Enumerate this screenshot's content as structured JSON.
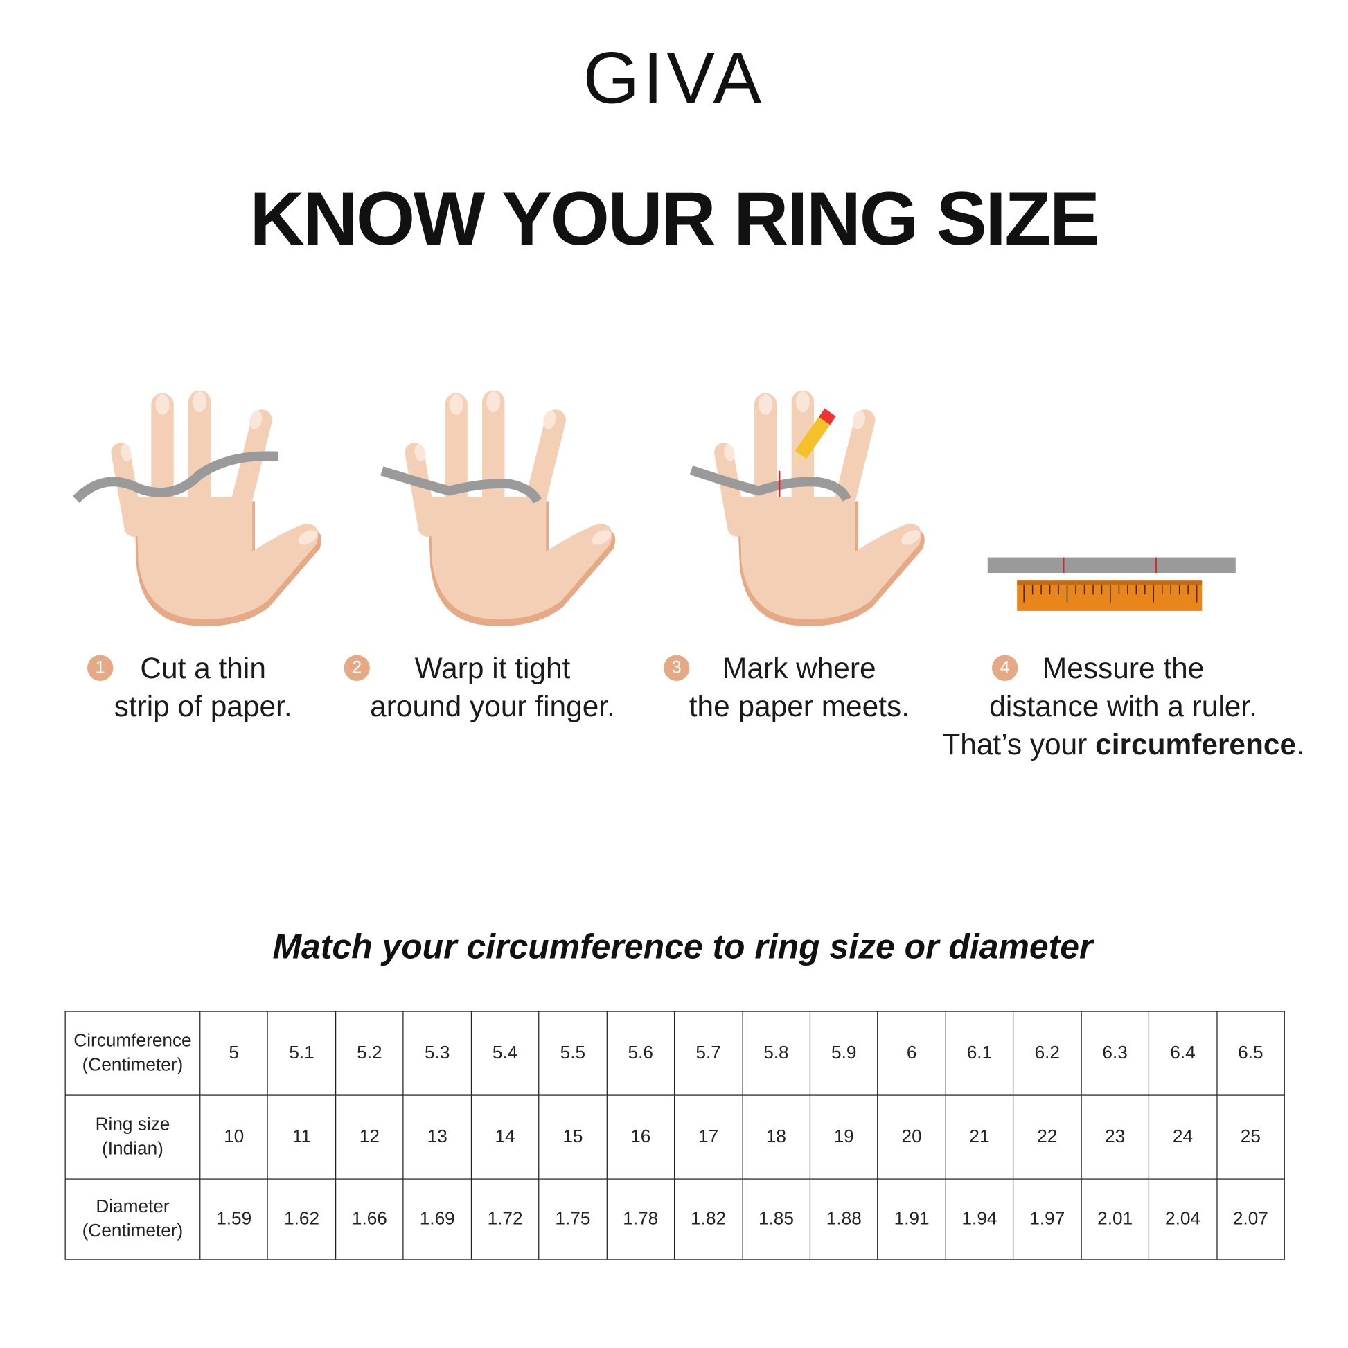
{
  "brand": "GIVA",
  "title": "KNOW YOUR RING SIZE",
  "steps": [
    {
      "number": "1",
      "lines": [
        "Cut a thin",
        "strip of paper."
      ]
    },
    {
      "number": "2",
      "lines": [
        "Warp it tight",
        "around your finger."
      ]
    },
    {
      "number": "3",
      "lines": [
        "Mark where",
        "the paper meets."
      ]
    },
    {
      "number": "4",
      "lines": [
        "Messure the",
        "distance with a ruler."
      ],
      "line3_prefix": "That’s your ",
      "line3_bold": "circumference",
      "line3_suffix": "."
    }
  ],
  "subtitle": "Match your circumference to ring size or diameter",
  "table": {
    "rows": [
      {
        "header": [
          "Circumference",
          "(Centimeter)"
        ],
        "values": [
          "5",
          "5.1",
          "5.2",
          "5.3",
          "5.4",
          "5.5",
          "5.6",
          "5.7",
          "5.8",
          "5.9",
          "6",
          "6.1",
          "6.2",
          "6.3",
          "6.4",
          "6.5"
        ]
      },
      {
        "header": [
          "Ring size",
          "(Indian)"
        ],
        "values": [
          "10",
          "11",
          "12",
          "13",
          "14",
          "15",
          "16",
          "17",
          "18",
          "19",
          "20",
          "21",
          "22",
          "23",
          "24",
          "25"
        ]
      },
      {
        "header": [
          "Diameter",
          "(Centimeter)"
        ],
        "values": [
          "1.59",
          "1.62",
          "1.66",
          "1.69",
          "1.72",
          "1.75",
          "1.78",
          "1.82",
          "1.85",
          "1.88",
          "1.91",
          "1.94",
          "1.97",
          "2.01",
          "2.04",
          "2.07"
        ]
      }
    ]
  },
  "colors": {
    "skin": "#f3d0b5",
    "skin_shadow": "#e5a986",
    "paper_strip": "#9a9a9a",
    "ruler": "#e8861c",
    "step_badge": "#e5a986"
  }
}
